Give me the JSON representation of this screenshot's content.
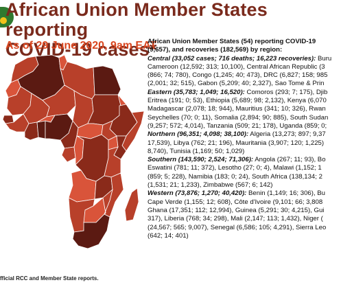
{
  "title_line1": "African Union Member States reporting",
  "title_line2": "COVID-19 cases*",
  "date": "As of 29 June 2020, 9am EAT",
  "footnote": "fficial RCC and Member State reports.",
  "summary_line1": "African Union Member States (54) reporting COVID-19",
  "summary_line2": "(9,657), and recoveries (182,569) by region:",
  "central": {
    "label": "Central (33,052 cases; 716 deaths; 16,223 recoveries):",
    "line1_rest": " Buru",
    "lines": [
      "Cameroon (12,592; 313; 10,100), Central African Republic (3",
      "(866; 74; 780), Congo (1,245; 40; 473), DRC (6,827; 158; 985",
      "(2,001; 32; 515), Gabon (5,209; 40; 2,327), Sao Tome & Prin"
    ]
  },
  "eastern": {
    "label": "Eastern (35,783; 1,049; 16,520):",
    "line1_rest": " Comoros (293; 7; 175), Djib",
    "lines": [
      "Eritrea (191; 0; 53), Ethiopia (5,689; 98; 2,132), Kenya (6,070",
      "Madagascar (2,078; 18; 944), Mauritius (341; 10; 326), Rwan",
      "Seychelles (70; 0; 11), Somalia (2,894; 90; 885), South Sudan",
      "(9,257; 572; 4,014), Tanzania (509; 21; 178), Uganda (859; 0;"
    ]
  },
  "northern": {
    "label": "Northern (96,351; 4,098; 38,100):",
    "line1_rest": " Algeria (13,273; 897; 9,37",
    "lines": [
      "17,539), Libya (762; 21; 196), Mauritania (3,907; 120; 1,225)",
      "8,740), Tunisia (1,169; 50; 1,029)"
    ]
  },
  "southern": {
    "label": "Southern (143,590; 2,524; 71,306):",
    "line1_rest": " Angola (267; 11; 93), Bo",
    "lines": [
      "Eswatini (781; 11; 372), Lesotho (27; 0; 4), Malawi (1,152; 1",
      "(859; 5; 228), Namibia (183; 0; 24), South Africa (138,134; 2",
      "(1,531; 21; 1,233), Zimbabwe (567; 6; 142)"
    ]
  },
  "western": {
    "label": "Western (73,876; 1,270; 40,420):",
    "line1_rest": " Benin (1,149; 16; 306), Bu",
    "lines": [
      "Cape Verde (1,155; 12; 608), Côte d'Ivoire (9,101; 66; 3,808",
      "Ghana (17,351; 112; 12,994), Guinea (5,291; 30; 4,215), Gui",
      "317), Liberia (768; 34; 298), Mali (2,147; 113; 1,432), Niger (",
      "(24,567; 565; 9,007), Senegal (6,586; 105; 4,291), Sierra Leo",
      "(642; 14; 401)"
    ]
  },
  "colors": {
    "title": "#7a2a1c",
    "date": "#d9461f",
    "darkest": "#5b1a12",
    "dark": "#8a2a1a",
    "mid": "#b8402a",
    "light": "#d9543a",
    "lightest": "#e46a4a"
  }
}
